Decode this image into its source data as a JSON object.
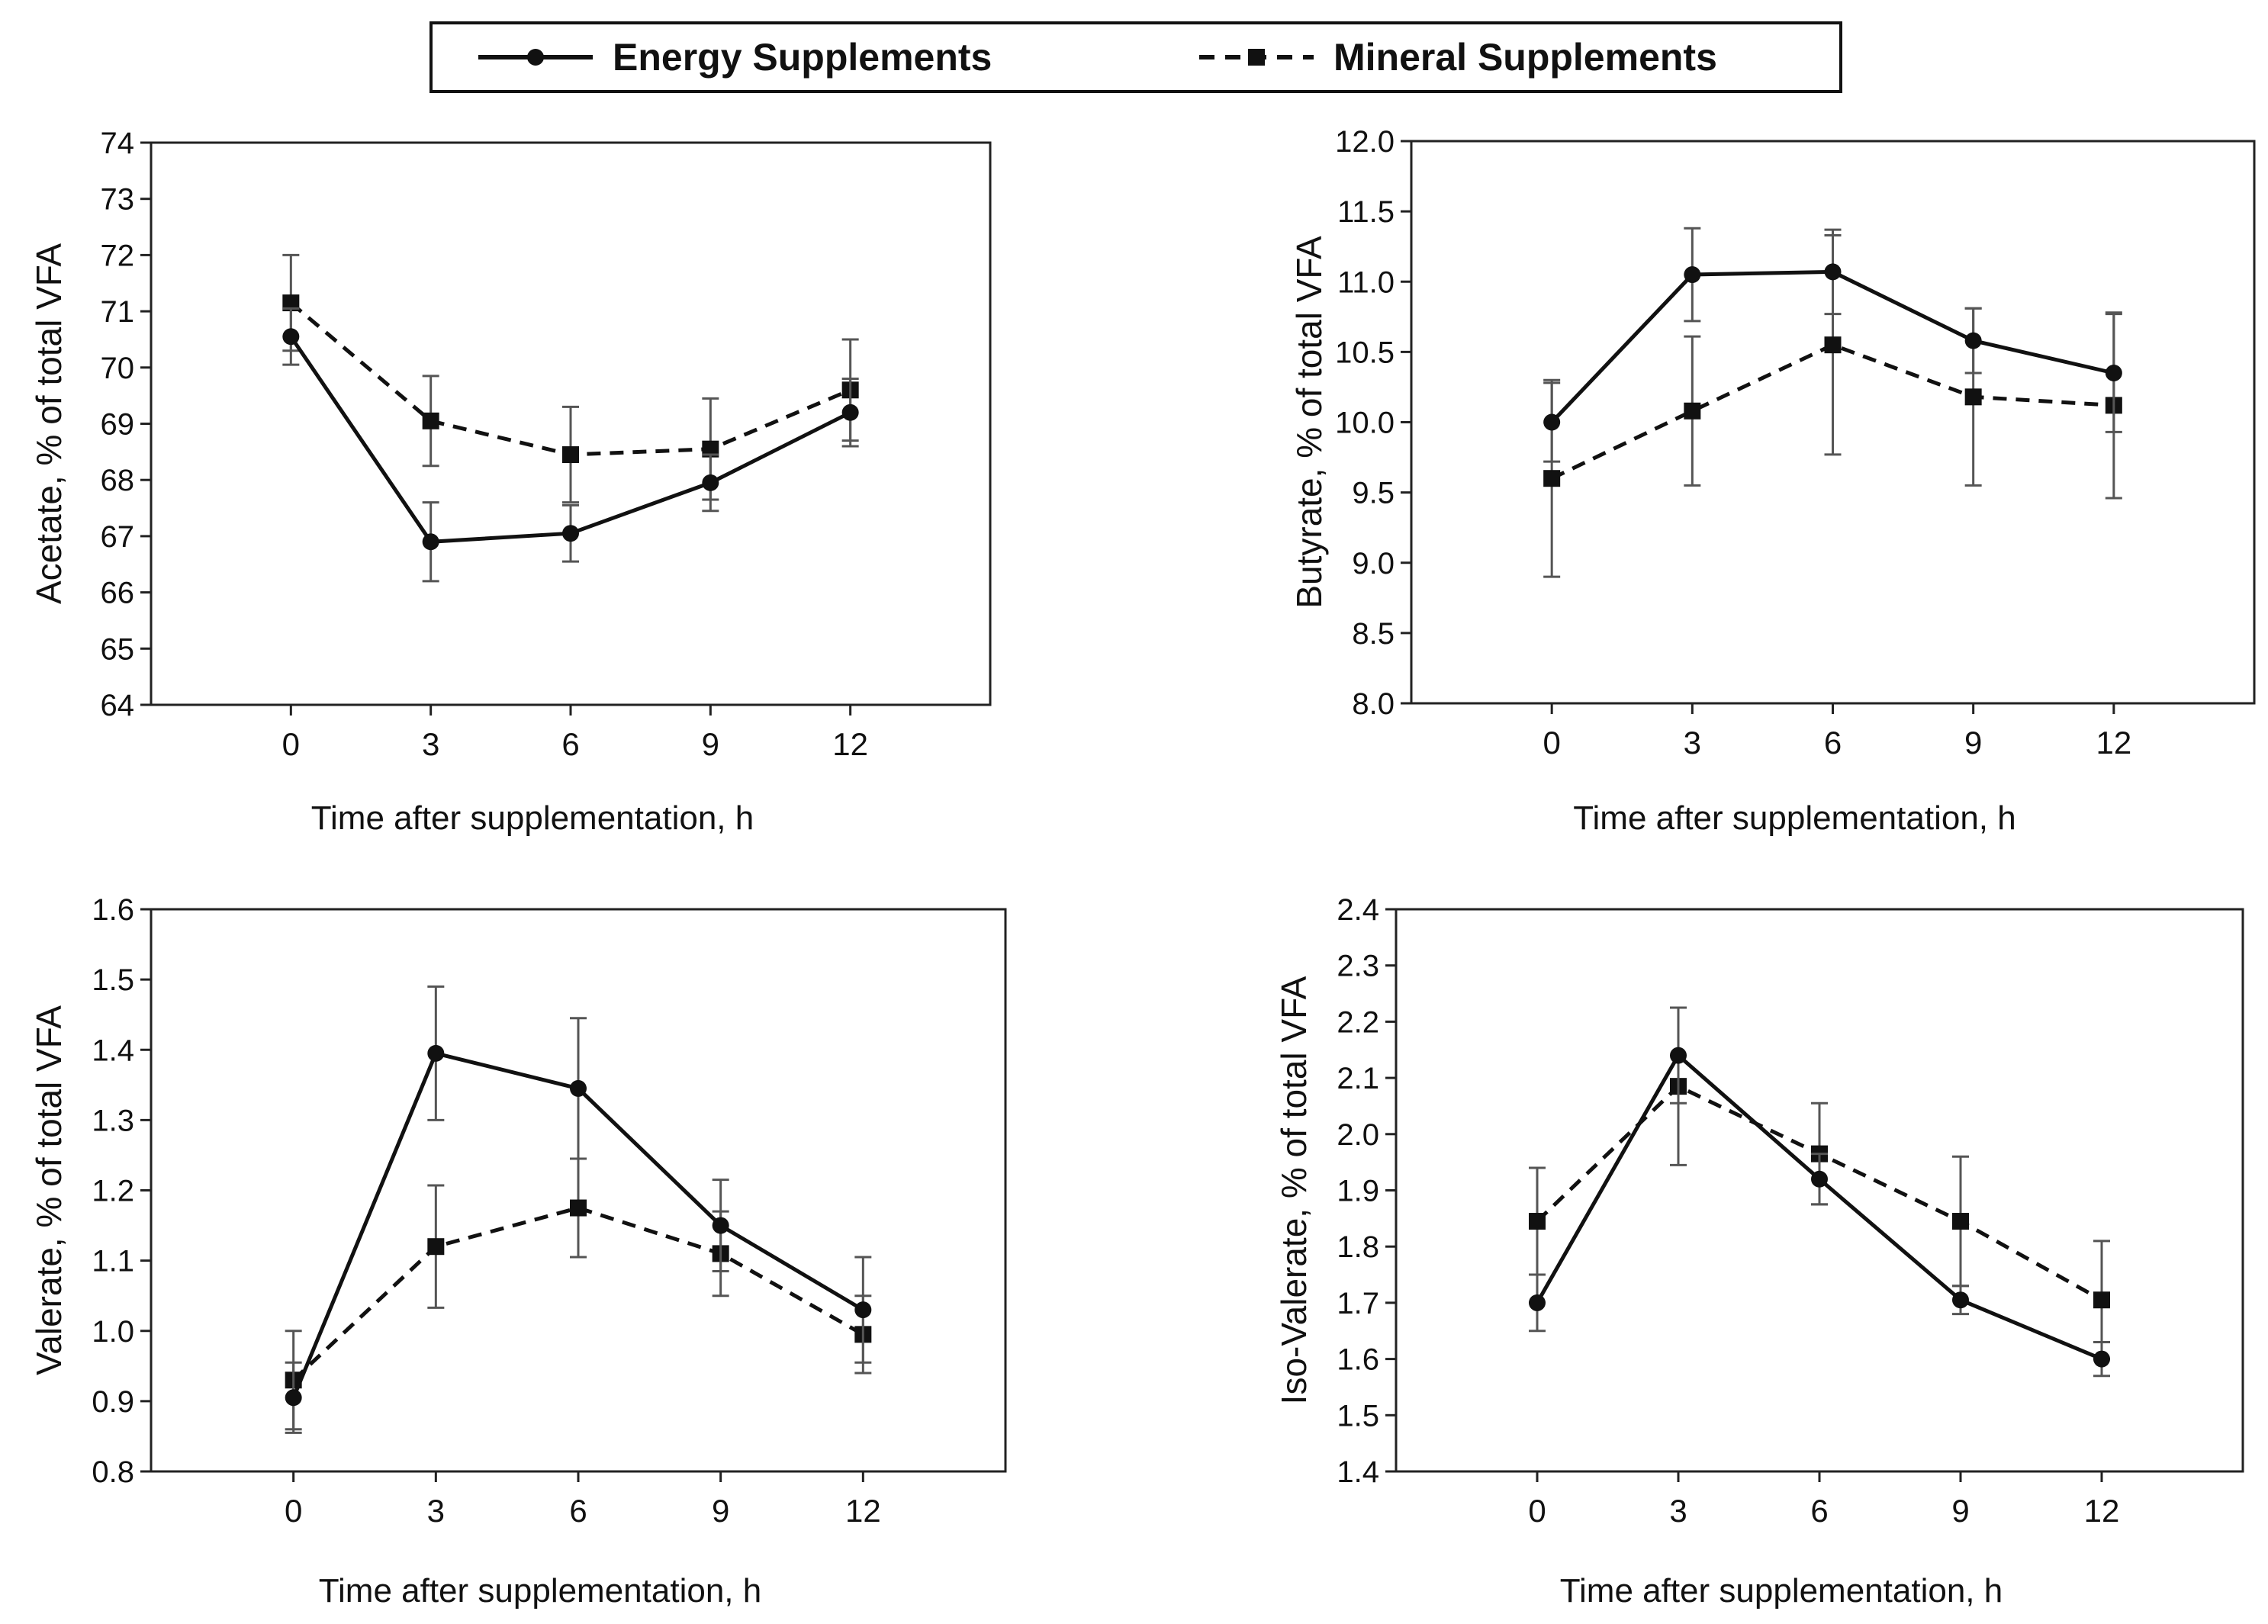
{
  "legend": {
    "energy_label": "Energy Supplements",
    "mineral_label": "Mineral Supplements"
  },
  "chart_data": [
    {
      "type": "line",
      "ylabel": "Acetate, % of total VFA",
      "xlabel": "Time after supplementation, h",
      "x": [
        0,
        3,
        6,
        9,
        12
      ],
      "xticks": [
        "0",
        "3",
        "6",
        "9",
        "12"
      ],
      "xlim": [
        -3,
        15
      ],
      "ylim": [
        64,
        74
      ],
      "ytick_step": 1,
      "ytick_decimals": 0,
      "series": [
        {
          "name": "Energy Supplements",
          "style": "solid",
          "marker": "circle",
          "values": [
            70.55,
            66.9,
            67.05,
            67.95,
            69.2
          ],
          "errors": [
            0.5,
            0.7,
            0.5,
            0.5,
            0.6
          ]
        },
        {
          "name": "Mineral Supplements",
          "style": "dashed",
          "marker": "square",
          "values": [
            71.15,
            69.05,
            68.45,
            68.55,
            69.6
          ],
          "errors": [
            0.85,
            0.8,
            0.85,
            0.9,
            0.9
          ]
        }
      ]
    },
    {
      "type": "line",
      "ylabel": "Butyrate, % of total VFA",
      "xlabel": "Time after supplementation, h",
      "x": [
        0,
        3,
        6,
        9,
        12
      ],
      "xticks": [
        "0",
        "3",
        "6",
        "9",
        "12"
      ],
      "xlim": [
        -3,
        15
      ],
      "ylim": [
        8.0,
        12.0
      ],
      "ytick_step": 0.5,
      "ytick_decimals": 1,
      "series": [
        {
          "name": "Energy Supplements",
          "style": "solid",
          "marker": "circle",
          "values": [
            10.0,
            11.05,
            11.07,
            10.58,
            10.35
          ],
          "errors": [
            0.28,
            0.33,
            0.3,
            0.23,
            0.42
          ]
        },
        {
          "name": "Mineral Supplements",
          "style": "dashed",
          "marker": "square",
          "values": [
            9.6,
            10.08,
            10.55,
            10.18,
            10.12
          ],
          "errors": [
            0.7,
            0.53,
            0.78,
            0.63,
            0.66
          ]
        }
      ]
    },
    {
      "type": "line",
      "ylabel": "Valerate, % of total VFA",
      "xlabel": "Time after supplementation, h",
      "x": [
        0,
        3,
        6,
        9,
        12
      ],
      "xticks": [
        "0",
        "3",
        "6",
        "9",
        "12"
      ],
      "xlim": [
        -3,
        15
      ],
      "ylim": [
        0.8,
        1.6
      ],
      "ytick_step": 0.1,
      "ytick_decimals": 1,
      "series": [
        {
          "name": "Energy Supplements",
          "style": "solid",
          "marker": "circle",
          "values": [
            0.905,
            1.395,
            1.345,
            1.15,
            1.03
          ],
          "errors": [
            0.05,
            0.095,
            0.1,
            0.065,
            0.075
          ]
        },
        {
          "name": "Mineral Supplements",
          "style": "dashed",
          "marker": "square",
          "values": [
            0.93,
            1.12,
            1.175,
            1.11,
            0.995
          ],
          "errors": [
            0.07,
            0.087,
            0.07,
            0.06,
            0.055
          ]
        }
      ]
    },
    {
      "type": "line",
      "ylabel": "Iso-Valerate, % of total VFA",
      "xlabel": "Time after supplementation, h",
      "x": [
        0,
        3,
        6,
        9,
        12
      ],
      "xticks": [
        "0",
        "3",
        "6",
        "9",
        "12"
      ],
      "xlim": [
        -3,
        15
      ],
      "ylim": [
        1.4,
        2.4
      ],
      "ytick_step": 0.1,
      "ytick_decimals": 1,
      "series": [
        {
          "name": "Energy Supplements",
          "style": "solid",
          "marker": "circle",
          "values": [
            1.7,
            2.14,
            1.92,
            1.705,
            1.6
          ],
          "errors": [
            0.05,
            0.085,
            0.045,
            0.025,
            0.03
          ]
        },
        {
          "name": "Mineral Supplements",
          "style": "dashed",
          "marker": "square",
          "values": [
            1.845,
            2.085,
            1.965,
            1.845,
            1.705
          ],
          "errors": [
            0.095,
            0.14,
            0.09,
            0.115,
            0.105
          ]
        }
      ]
    }
  ]
}
